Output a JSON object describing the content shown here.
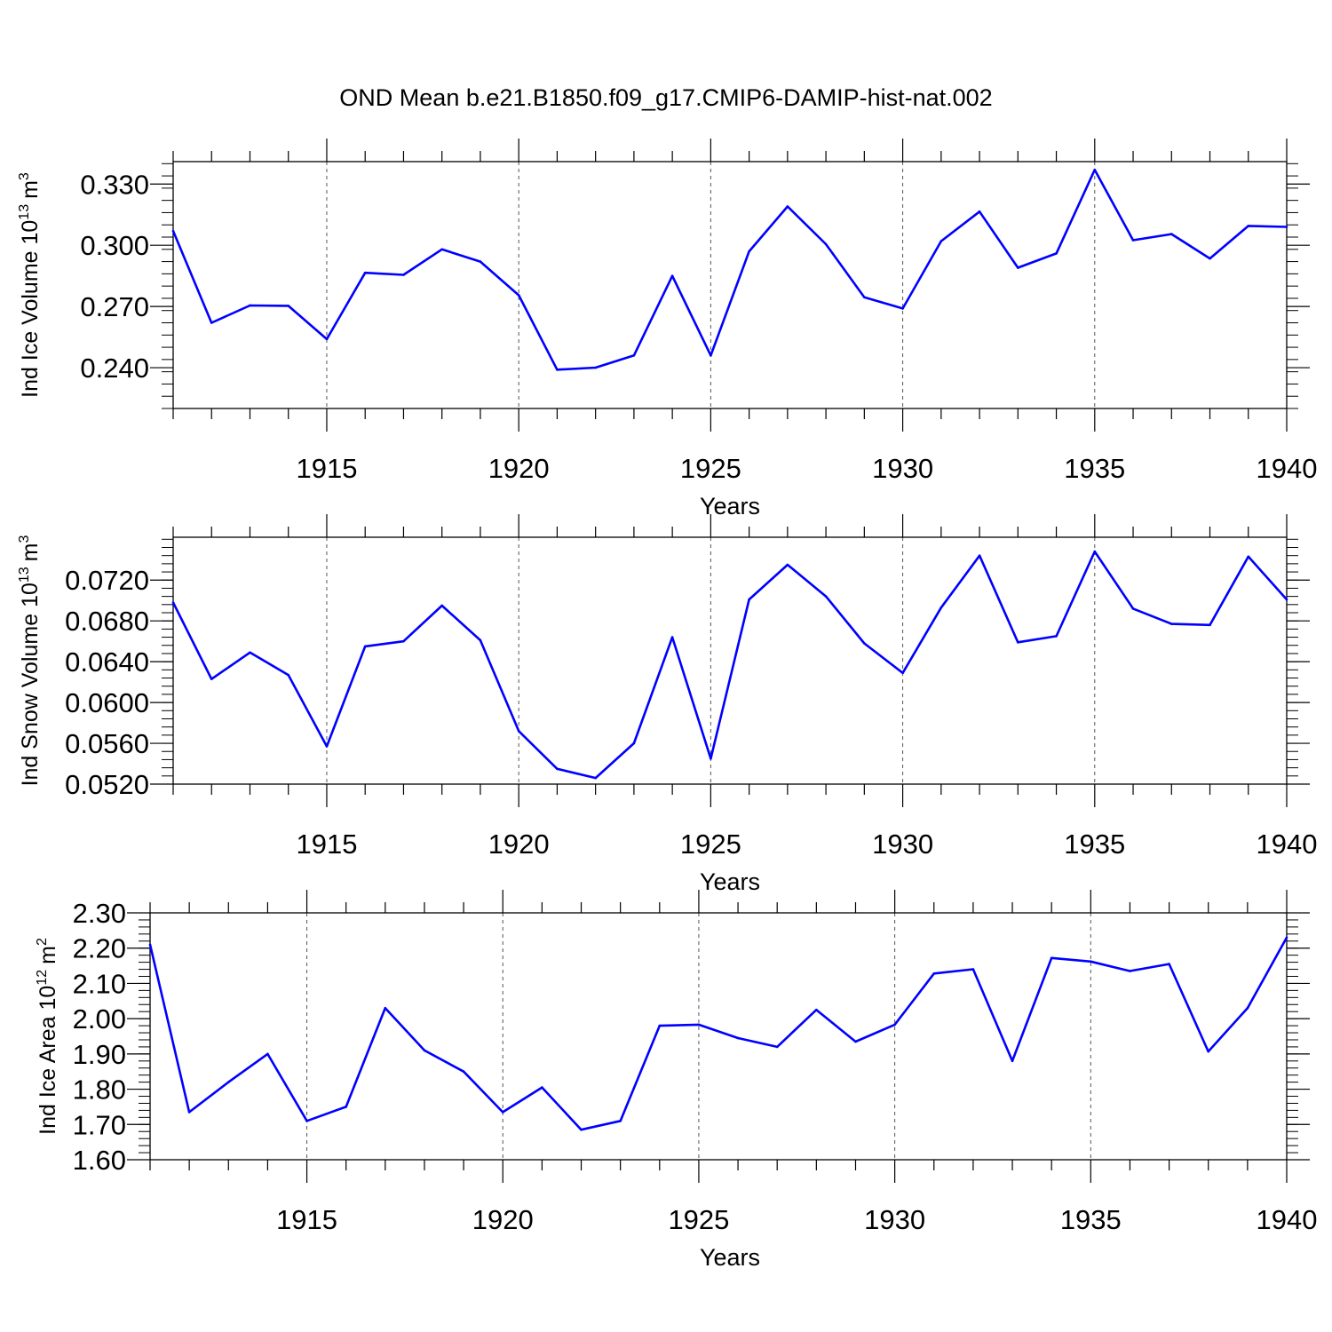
{
  "title": "OND Mean b.e21.B1850.f09_g17.CMIP6-DAMIP-hist-nat.002",
  "colors": {
    "line": "#0000ff",
    "axis": "#000000",
    "grid": "#555555"
  },
  "chart_data": [
    {
      "type": "line",
      "ylabel": "Ind Ice Volume 10",
      "ylabel_sup": "13",
      "ylabel_unit": "m",
      "ylabel_unit_sup": "3",
      "xlabel": "Years",
      "x": [
        1911,
        1912,
        1913,
        1914,
        1915,
        1916,
        1917,
        1918,
        1919,
        1920,
        1921,
        1922,
        1923,
        1924,
        1925,
        1926,
        1927,
        1928,
        1929,
        1930,
        1931,
        1932,
        1933,
        1934,
        1935,
        1936,
        1937,
        1938,
        1939,
        1940
      ],
      "values": [
        0.307,
        0.262,
        0.2705,
        0.2703,
        0.254,
        0.2865,
        0.2855,
        0.298,
        0.292,
        0.2755,
        0.239,
        0.24,
        0.246,
        0.285,
        0.246,
        0.297,
        0.319,
        0.3005,
        0.2745,
        0.269,
        0.302,
        0.3165,
        0.289,
        0.296,
        0.337,
        0.3025,
        0.3055,
        0.2935,
        0.3095,
        0.309
      ],
      "xlim": [
        1911,
        1940
      ],
      "ylim": [
        0.22,
        0.341
      ],
      "yticks": [
        0.24,
        0.27,
        0.3,
        0.33
      ],
      "ytick_labels": [
        "0.240",
        "0.270",
        "0.300",
        "0.330"
      ],
      "ytick_minor_step": 0.006,
      "xticks": [
        1915,
        1920,
        1925,
        1930,
        1935,
        1940
      ],
      "xtick_labels": [
        "1915",
        "1920",
        "1925",
        "1930",
        "1935",
        "1940"
      ]
    },
    {
      "type": "line",
      "ylabel": "Ind Snow Volume 10",
      "ylabel_sup": "13",
      "ylabel_unit": "m",
      "ylabel_unit_sup": "3",
      "xlabel": "Years",
      "x": [
        1911,
        1912,
        1913,
        1914,
        1915,
        1916,
        1917,
        1918,
        1919,
        1920,
        1921,
        1922,
        1923,
        1924,
        1925,
        1926,
        1927,
        1928,
        1929,
        1930,
        1931,
        1932,
        1933,
        1934,
        1935,
        1936,
        1937,
        1938,
        1939,
        1940
      ],
      "values": [
        0.0698,
        0.0623,
        0.0649,
        0.0627,
        0.0557,
        0.0655,
        0.066,
        0.0695,
        0.0661,
        0.0572,
        0.0535,
        0.0526,
        0.056,
        0.0664,
        0.0545,
        0.0701,
        0.0735,
        0.0704,
        0.0658,
        0.0629,
        0.0693,
        0.0744,
        0.0659,
        0.0665,
        0.0748,
        0.0692,
        0.0677,
        0.0676,
        0.0743,
        0.0701
      ],
      "xlim": [
        1911,
        1940
      ],
      "ylim": [
        0.052,
        0.0762
      ],
      "yticks": [
        0.052,
        0.056,
        0.06,
        0.064,
        0.068,
        0.072
      ],
      "ytick_labels": [
        "0.0520",
        "0.0560",
        "0.0600",
        "0.0640",
        "0.0680",
        "0.0720"
      ],
      "ytick_minor_step": 0.0008,
      "xticks": [
        1915,
        1920,
        1925,
        1930,
        1935,
        1940
      ],
      "xtick_labels": [
        "1915",
        "1920",
        "1925",
        "1930",
        "1935",
        "1940"
      ]
    },
    {
      "type": "line",
      "ylabel": "Ind Ice Area 10",
      "ylabel_sup": "12",
      "ylabel_unit": "m",
      "ylabel_unit_sup": "2",
      "xlabel": "Years",
      "x": [
        1911,
        1912,
        1913,
        1914,
        1915,
        1916,
        1917,
        1918,
        1919,
        1920,
        1921,
        1922,
        1923,
        1924,
        1925,
        1926,
        1927,
        1928,
        1929,
        1930,
        1931,
        1932,
        1933,
        1934,
        1935,
        1936,
        1937,
        1938,
        1939,
        1940
      ],
      "values": [
        2.21,
        1.735,
        1.82,
        1.9,
        1.71,
        1.75,
        2.03,
        1.91,
        1.85,
        1.735,
        1.805,
        1.685,
        1.71,
        1.98,
        1.983,
        1.945,
        1.92,
        2.025,
        1.935,
        1.983,
        2.128,
        2.14,
        1.88,
        2.172,
        2.162,
        2.135,
        2.155,
        1.907,
        2.03,
        2.23
      ],
      "xlim": [
        1911,
        1940
      ],
      "ylim": [
        1.6,
        2.3
      ],
      "yticks": [
        1.6,
        1.7,
        1.8,
        1.9,
        2.0,
        2.1,
        2.2,
        2.3
      ],
      "ytick_labels": [
        "1.60",
        "1.70",
        "1.80",
        "1.90",
        "2.00",
        "2.10",
        "2.20",
        "2.30"
      ],
      "ytick_minor_step": 0.02,
      "xticks": [
        1915,
        1920,
        1925,
        1930,
        1935,
        1940
      ],
      "xtick_labels": [
        "1915",
        "1920",
        "1925",
        "1930",
        "1935",
        "1940"
      ]
    }
  ]
}
